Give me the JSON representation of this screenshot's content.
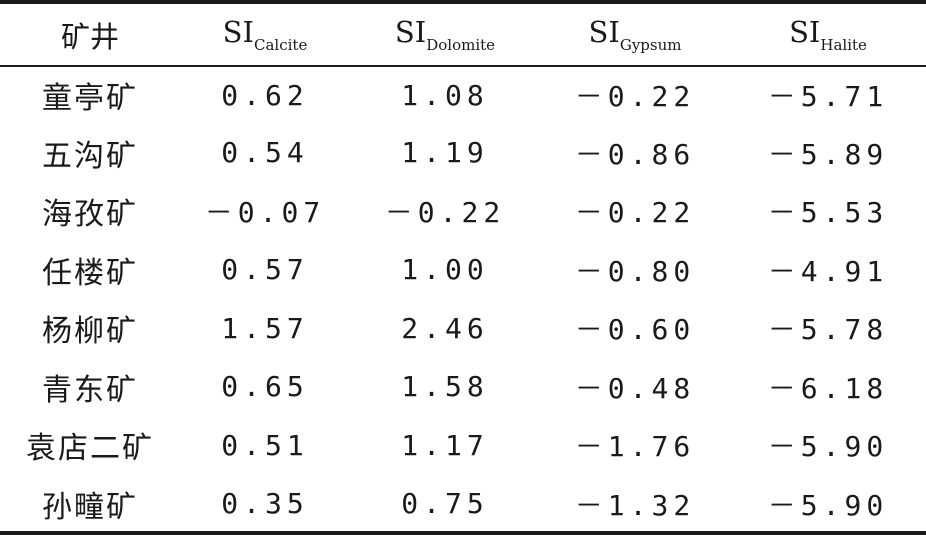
{
  "table": {
    "headers": {
      "mine": "矿井",
      "calcite": {
        "base": "SI",
        "sub": "Calcite"
      },
      "dolomite": {
        "base": "SI",
        "sub": "Dolomite"
      },
      "gypsum": {
        "base": "SI",
        "sub": "Gypsum"
      },
      "halite": {
        "base": "SI",
        "sub": "Halite"
      }
    },
    "rows": [
      {
        "mine": "童亭矿",
        "calcite": "0.62",
        "dolomite": "1.08",
        "gypsum": "－0.22",
        "halite": "－5.71"
      },
      {
        "mine": "五沟矿",
        "calcite": "0.54",
        "dolomite": "1.19",
        "gypsum": "－0.86",
        "halite": "－5.89"
      },
      {
        "mine": "海孜矿",
        "calcite": "－0.07",
        "dolomite": "－0.22",
        "gypsum": "－0.22",
        "halite": "－5.53"
      },
      {
        "mine": "任楼矿",
        "calcite": "0.57",
        "dolomite": "1.00",
        "gypsum": "－0.80",
        "halite": "－4.91"
      },
      {
        "mine": "杨柳矿",
        "calcite": "1.57",
        "dolomite": "2.46",
        "gypsum": "－0.60",
        "halite": "－5.78"
      },
      {
        "mine": "青东矿",
        "calcite": "0.65",
        "dolomite": "1.58",
        "gypsum": "－0.48",
        "halite": "－6.18"
      },
      {
        "mine": "袁店二矿",
        "calcite": "0.51",
        "dolomite": "1.17",
        "gypsum": "－1.76",
        "halite": "－5.90"
      },
      {
        "mine": "孙疃矿",
        "calcite": "0.35",
        "dolomite": "0.75",
        "gypsum": "－1.32",
        "halite": "－5.90"
      }
    ]
  }
}
